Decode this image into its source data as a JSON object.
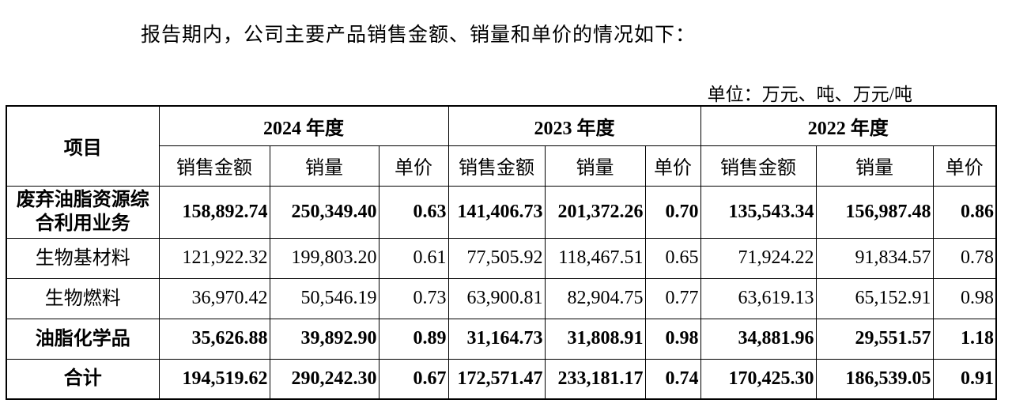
{
  "intro": "报告期内，公司主要产品销售金额、销量和单价的情况如下：",
  "unit": "单位：万元、吨、万元/吨",
  "table": {
    "item_header": "项目",
    "years": [
      "2024 年度",
      "2023 年度",
      "2022 年度"
    ],
    "sub_headers": [
      "销售金额",
      "销量",
      "单价"
    ],
    "rows": [
      {
        "label": "废弃油脂资源综合利用业务",
        "label_lines": [
          "废弃油脂资源综",
          "合利用业务"
        ],
        "bold": true,
        "values": [
          "158,892.74",
          "250,349.40",
          "0.63",
          "141,406.73",
          "201,372.26",
          "0.70",
          "135,543.34",
          "156,987.48",
          "0.86"
        ]
      },
      {
        "label": "生物基材料",
        "bold": false,
        "values": [
          "121,922.32",
          "199,803.20",
          "0.61",
          "77,505.92",
          "118,467.51",
          "0.65",
          "71,924.22",
          "91,834.57",
          "0.78"
        ]
      },
      {
        "label": "生物燃料",
        "bold": false,
        "values": [
          "36,970.42",
          "50,546.19",
          "0.73",
          "63,900.81",
          "82,904.75",
          "0.77",
          "63,619.13",
          "65,152.91",
          "0.98"
        ]
      },
      {
        "label": "油脂化学品",
        "bold": true,
        "values": [
          "35,626.88",
          "39,892.90",
          "0.89",
          "31,164.73",
          "31,808.91",
          "0.98",
          "34,881.96",
          "29,551.57",
          "1.18"
        ]
      },
      {
        "label": "合计",
        "bold": true,
        "values": [
          "194,519.62",
          "290,242.30",
          "0.67",
          "172,571.47",
          "233,181.17",
          "0.74",
          "170,425.30",
          "186,539.05",
          "0.91"
        ]
      }
    ]
  }
}
